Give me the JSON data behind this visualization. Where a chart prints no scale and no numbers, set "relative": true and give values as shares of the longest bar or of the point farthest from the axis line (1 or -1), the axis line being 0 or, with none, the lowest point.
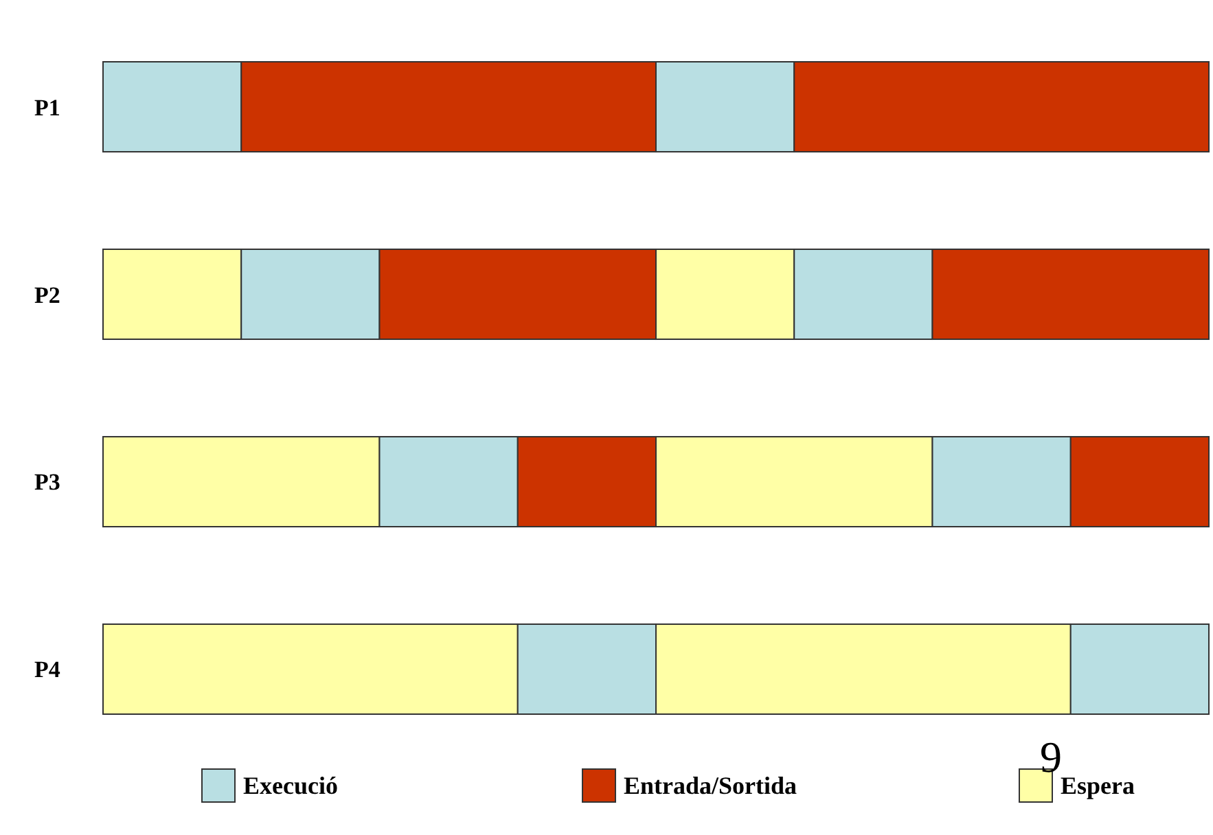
{
  "chart_data": {
    "type": "bar",
    "orientation": "horizontal",
    "stacked": true,
    "relative": true,
    "legend": "bottom",
    "categories": [
      "P1",
      "P2",
      "P3",
      "P4"
    ],
    "series": [
      {
        "name": "Espera",
        "color": "#ffffa6",
        "values": [
          null,
          0.125,
          0.25,
          0.375
        ]
      },
      {
        "name": "Execució",
        "color": "#b9dfe3",
        "values": [
          0.125,
          0.125,
          0.125,
          0.125
        ]
      },
      {
        "name": "Entrada/Sortida",
        "color": "#cc3300",
        "values": [
          0.375,
          0.25,
          0.125,
          null
        ]
      },
      {
        "color": "#ffffa6",
        "values": [
          null,
          0.125,
          0.25,
          0.375
        ]
      },
      {
        "color": "#b9dfe3",
        "values": [
          0.125,
          0.125,
          0.125,
          0.125
        ]
      },
      {
        "color": "#cc3300",
        "values": [
          0.375,
          0.25,
          0.125,
          null
        ]
      }
    ],
    "annotations": [
      "9"
    ]
  }
}
